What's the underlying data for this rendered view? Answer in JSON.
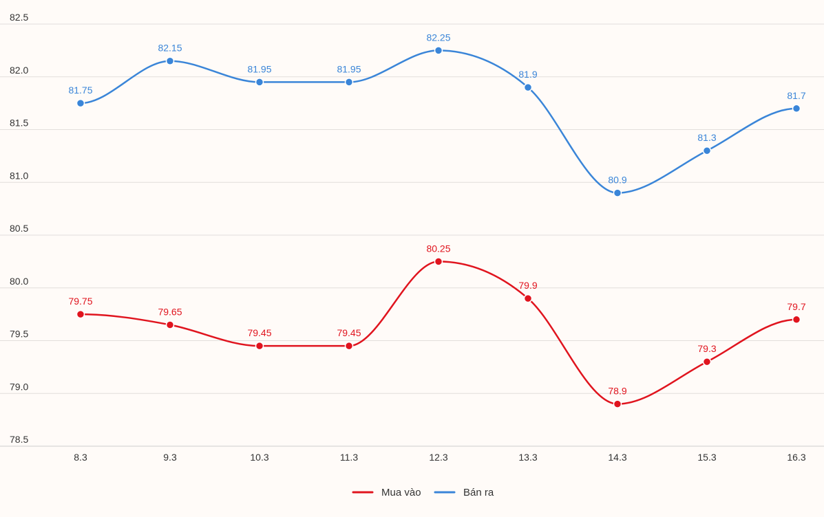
{
  "chart_data": {
    "type": "line",
    "title": "",
    "xlabel": "",
    "ylabel": "",
    "categories": [
      "8.3",
      "9.3",
      "10.3",
      "11.3",
      "12.3",
      "13.3",
      "14.3",
      "15.3",
      "16.3"
    ],
    "ylim": [
      78.5,
      82.5
    ],
    "yticks": [
      "78.5",
      "79.0",
      "79.5",
      "80.0",
      "80.5",
      "81.0",
      "81.5",
      "82.0",
      "82.5"
    ],
    "grid": true,
    "legend_position": "bottom-center",
    "series": [
      {
        "name": "Mua vào",
        "color": "#e0141e",
        "values": [
          79.75,
          79.65,
          79.45,
          79.45,
          80.25,
          79.9,
          78.9,
          79.3,
          79.7
        ],
        "labels": [
          "79.75",
          "79.65",
          "79.45",
          "79.45",
          "80.25",
          "79.9",
          "78.9",
          "79.3",
          "79.7"
        ]
      },
      {
        "name": "Bán ra",
        "color": "#3a85d8",
        "values": [
          81.75,
          82.15,
          81.95,
          81.95,
          82.25,
          81.9,
          80.9,
          81.3,
          81.7
        ],
        "labels": [
          "81.75",
          "82.15",
          "81.95",
          "81.95",
          "82.25",
          "81.9",
          "80.9",
          "81.3",
          "81.7"
        ]
      }
    ]
  }
}
